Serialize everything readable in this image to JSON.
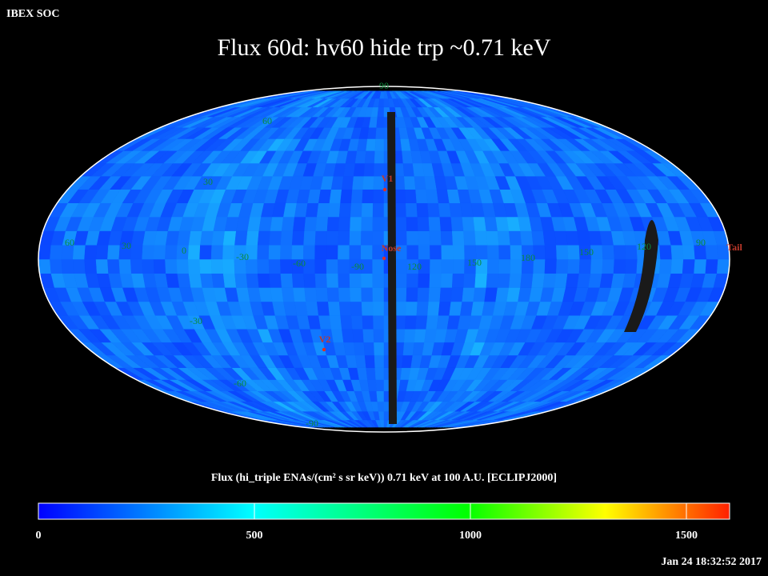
{
  "header": {
    "corner": "IBEX SOC",
    "title": "Flux   60d: hv60 hide trp ~0.71 keV"
  },
  "map": {
    "grid_labels": [
      "90",
      "60",
      "30",
      "60",
      "30",
      "0",
      "-30",
      "-60",
      "-90",
      "120",
      "150",
      "180",
      "150",
      "120",
      "90",
      "-30",
      "-60",
      "-90"
    ],
    "markers": [
      "V1",
      "Nose",
      "V2",
      "Tail"
    ]
  },
  "colorbar": {
    "title": "Flux (hi_triple ENAs/(cm² s sr keV))  0.71 keV at 100 A.U. [ECLIPJ2000]",
    "lim": [
      0,
      1600
    ],
    "ticks": [
      0,
      500,
      1000,
      1500
    ]
  },
  "footer": {
    "timestamp": "Jan 24 18:32:52 2017"
  }
}
